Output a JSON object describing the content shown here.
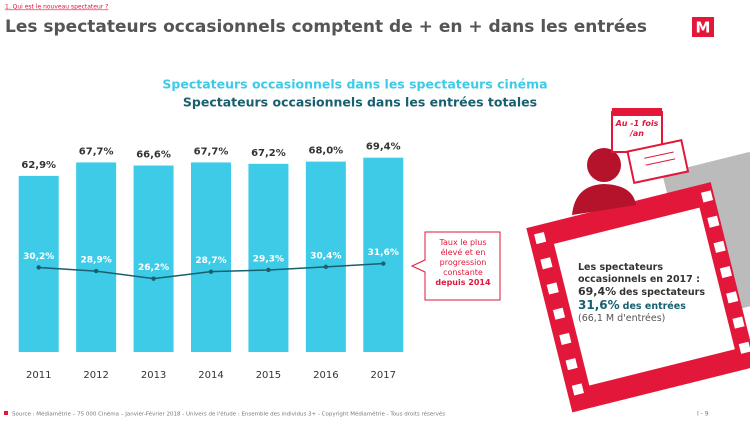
{
  "header": {
    "breadcrumb": "1. Qui est le nouveau spectateur ?",
    "title": "Les spectateurs occasionnels comptent de + en + dans les entrées",
    "logo": "M"
  },
  "chart_data": {
    "type": "bar",
    "categories": [
      "2011",
      "2012",
      "2013",
      "2014",
      "2015",
      "2016",
      "2017"
    ],
    "ylim": [
      0,
      70
    ],
    "series": [
      {
        "name": "Spectateurs occasionnels dans les spectateurs cinéma",
        "type": "bar",
        "color": "#3ecbe8",
        "values": [
          62.9,
          67.7,
          66.6,
          67.7,
          67.2,
          68.0,
          69.4
        ],
        "value_labels": [
          "62,9%",
          "67,7%",
          "66,6%",
          "67,7%",
          "67,2%",
          "68,0%",
          "69,4%"
        ]
      },
      {
        "name": "Spectateurs occasionnels dans les entrées totales",
        "type": "line",
        "color": "#17606f",
        "values": [
          30.2,
          28.9,
          26.2,
          28.7,
          29.3,
          30.4,
          31.6
        ],
        "value_labels": [
          "30,2%",
          "28,9%",
          "26,2%",
          "28,7%",
          "29,3%",
          "30,4%",
          "31,6%"
        ]
      }
    ],
    "annotation": {
      "text": "Taux le plus élevé et en progression constante",
      "emphasis": "depuis 2014"
    }
  },
  "illustration": {
    "calendar": "Au -1 fois /an",
    "heading": "Les spectateurs occasionnels en 2017 :",
    "stat1": "69,4%",
    "stat1_text": "des spectateurs",
    "stat2": "31,6%",
    "stat2_text": "des entrées",
    "note": "(66,1 M d'entrées)"
  },
  "footer": {
    "source": "Source : Médiamétrie – 75 000 Cinéma – Janvier-Février 2018 - Univers de l'étude : Ensemble des individus 3+ - Copyright Médiamétrie - Tous droits réservés",
    "page": "I - 9"
  }
}
